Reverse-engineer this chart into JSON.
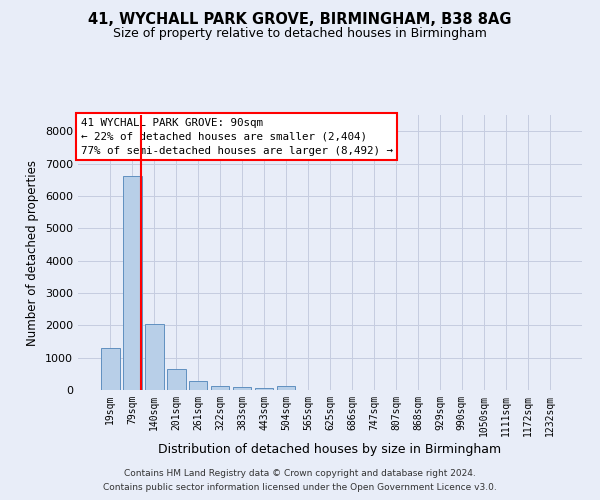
{
  "title": "41, WYCHALL PARK GROVE, BIRMINGHAM, B38 8AG",
  "subtitle": "Size of property relative to detached houses in Birmingham",
  "xlabel": "Distribution of detached houses by size in Birmingham",
  "ylabel": "Number of detached properties",
  "bar_labels": [
    "19sqm",
    "79sqm",
    "140sqm",
    "201sqm",
    "261sqm",
    "322sqm",
    "383sqm",
    "443sqm",
    "504sqm",
    "565sqm",
    "625sqm",
    "686sqm",
    "747sqm",
    "807sqm",
    "868sqm",
    "929sqm",
    "990sqm",
    "1050sqm",
    "1111sqm",
    "1172sqm",
    "1232sqm"
  ],
  "bar_values": [
    1300,
    6600,
    2050,
    650,
    280,
    130,
    90,
    70,
    110,
    0,
    0,
    0,
    0,
    0,
    0,
    0,
    0,
    0,
    0,
    0,
    0
  ],
  "bar_color": "#b8cfe8",
  "bar_edge_color": "#6090c0",
  "ylim": [
    0,
    8500
  ],
  "yticks": [
    0,
    1000,
    2000,
    3000,
    4000,
    5000,
    6000,
    7000,
    8000
  ],
  "red_line_x": 1.42,
  "annotation_line1": "41 WYCHALL PARK GROVE: 90sqm",
  "annotation_line2": "← 22% of detached houses are smaller (2,404)",
  "annotation_line3": "77% of semi-detached houses are larger (8,492) →",
  "background_color": "#e8edf8",
  "grid_color": "#c5cce0",
  "title_fontsize": 10.5,
  "subtitle_fontsize": 9,
  "footer_line1": "Contains HM Land Registry data © Crown copyright and database right 2024.",
  "footer_line2": "Contains public sector information licensed under the Open Government Licence v3.0."
}
